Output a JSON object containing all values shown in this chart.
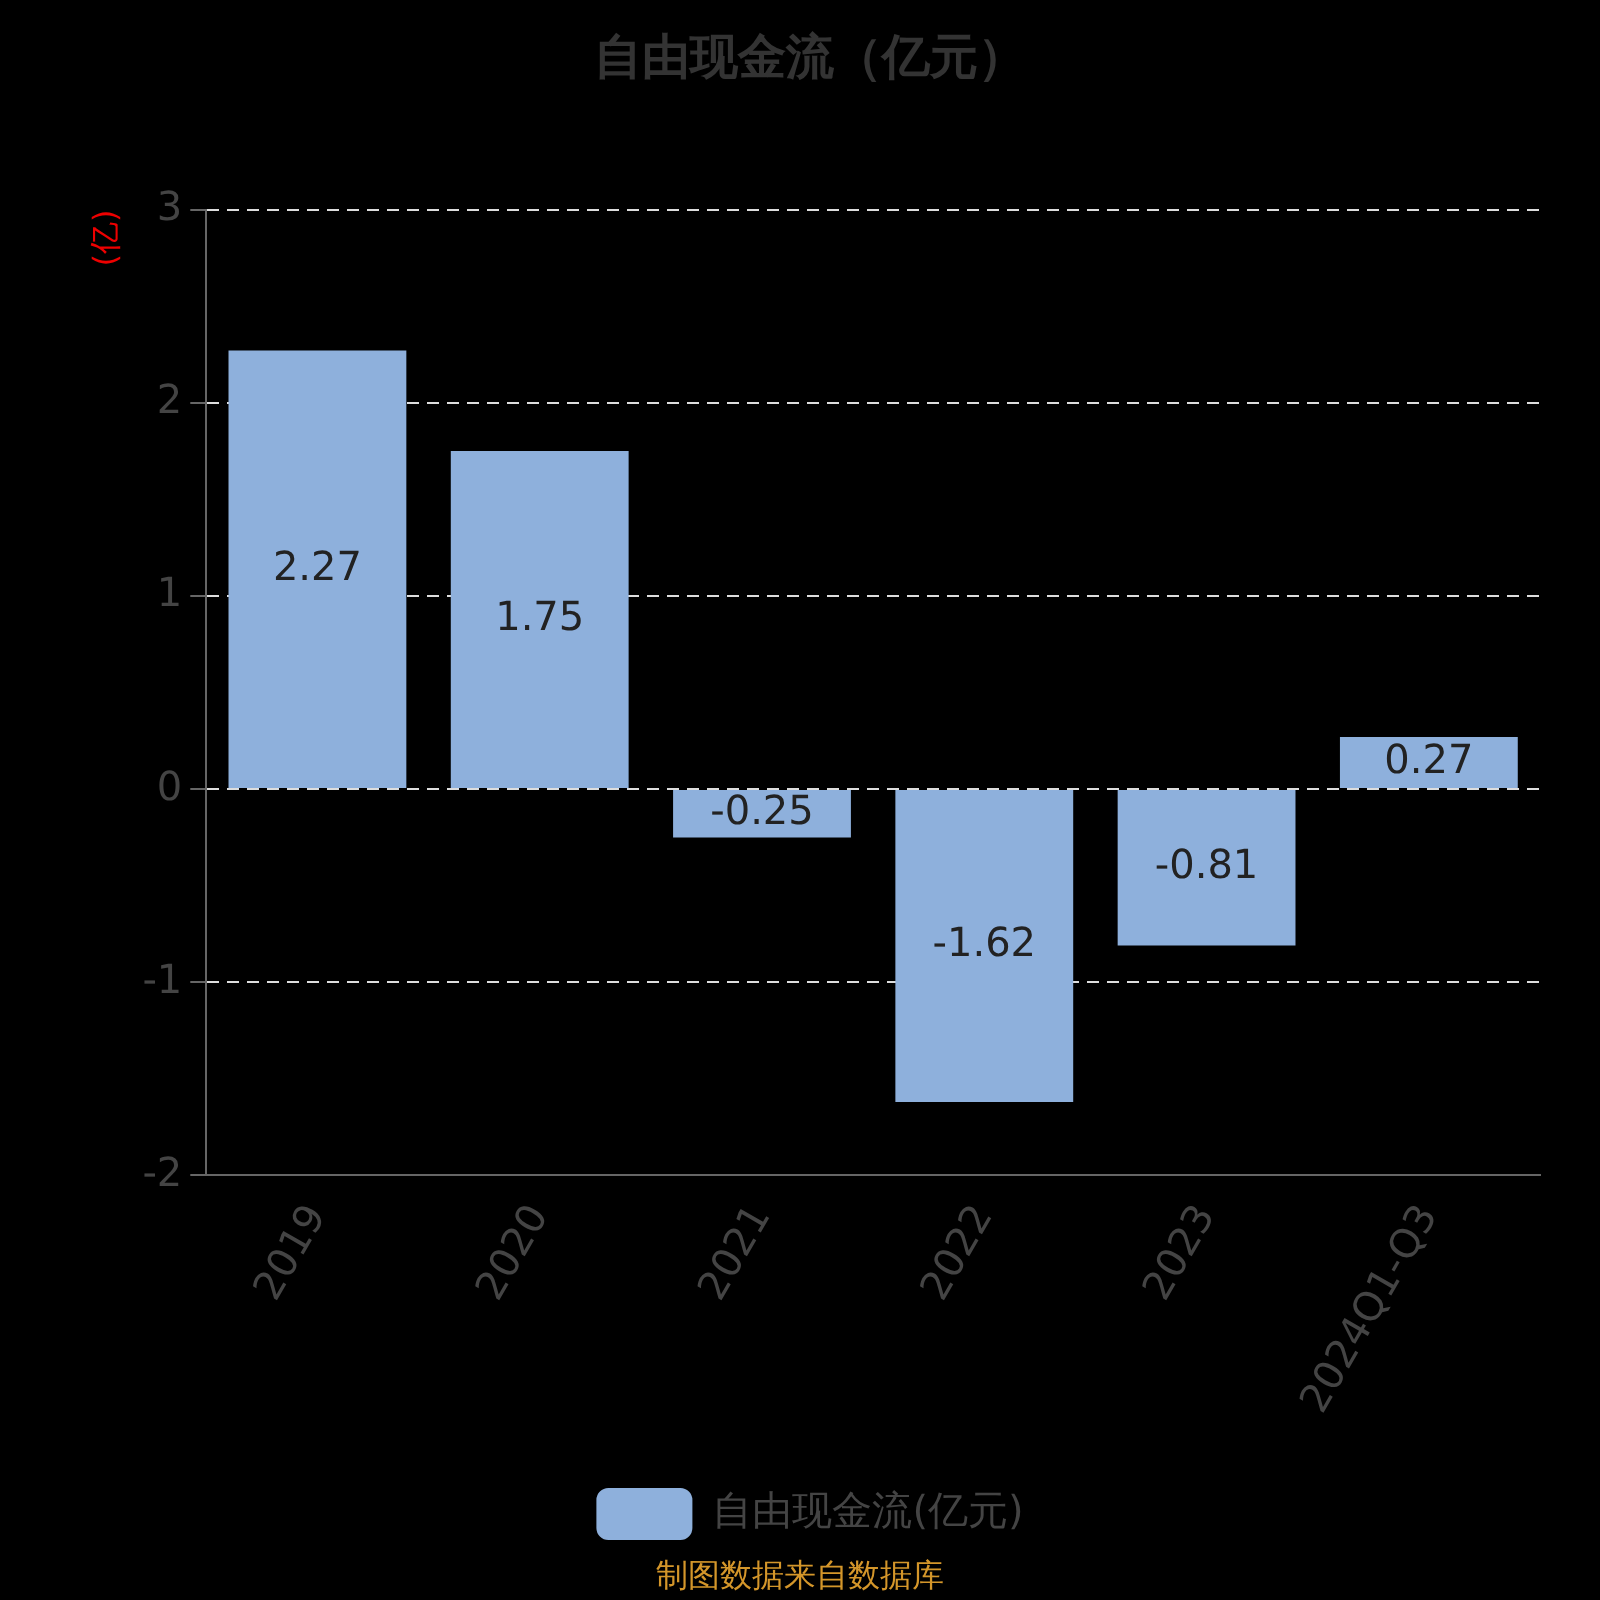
{
  "chart_data": {
    "type": "bar",
    "title": "自由现金流（亿元）",
    "ylabel": "(亿)",
    "categories": [
      "2019",
      "2020",
      "2021",
      "2022",
      "2023",
      "2024Q1-Q3"
    ],
    "series": [
      {
        "name": "自由现金流(亿元)",
        "color": "#8eb0dc",
        "values": [
          2.27,
          1.75,
          -0.25,
          -1.62,
          -0.81,
          0.27
        ]
      }
    ],
    "ylim": [
      -2,
      3
    ],
    "yticks": [
      -2,
      -1,
      0,
      1,
      2,
      3
    ],
    "grid": "y",
    "legend": "bottom",
    "data_labels": true,
    "annotations": [
      "制图数据来自数据库"
    ]
  }
}
